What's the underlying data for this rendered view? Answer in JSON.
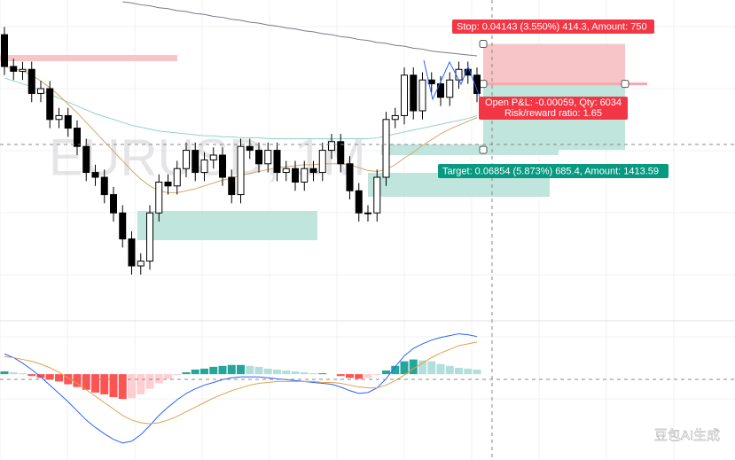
{
  "chart_data": [
    {
      "type": "candlestick",
      "title": "EURUSD, 1M",
      "open": [
        1.218,
        1.185,
        1.18,
        1.182,
        1.157,
        1.162,
        1.13,
        1.134,
        1.121,
        1.102,
        1.075,
        1.07,
        1.052,
        1.033,
        1.006,
        0.978,
        0.983,
        1.033,
        1.065,
        1.061,
        1.079,
        1.098,
        1.075,
        1.088,
        1.093,
        1.07,
        1.052,
        1.102,
        1.098,
        1.084,
        1.098,
        1.075,
        1.079,
        1.065,
        1.079,
        1.075,
        1.098,
        1.107,
        1.084,
        1.056,
        1.033,
        1.033,
        1.07,
        1.13,
        1.134,
        1.176,
        1.139,
        1.171,
        1.167,
        1.153,
        1.171,
        1.182,
        1.176
      ],
      "high": [
        1.226,
        1.193,
        1.19,
        1.19,
        1.17,
        1.17,
        1.142,
        1.142,
        1.129,
        1.11,
        1.083,
        1.078,
        1.06,
        1.041,
        1.014,
        0.991,
        1.041,
        1.073,
        1.073,
        1.087,
        1.106,
        1.106,
        1.096,
        1.101,
        1.101,
        1.078,
        1.11,
        1.11,
        1.106,
        1.106,
        1.106,
        1.087,
        1.087,
        1.087,
        1.087,
        1.106,
        1.115,
        1.115,
        1.092,
        1.064,
        1.041,
        1.078,
        1.138,
        1.142,
        1.184,
        1.184,
        1.179,
        1.179,
        1.175,
        1.179,
        1.19,
        1.19,
        1.184
      ],
      "low": [
        1.176,
        1.171,
        1.171,
        1.148,
        1.148,
        1.121,
        1.121,
        1.112,
        1.093,
        1.066,
        1.061,
        1.043,
        1.024,
        0.997,
        0.969,
        0.969,
        0.974,
        1.024,
        1.052,
        1.052,
        1.07,
        1.066,
        1.066,
        1.079,
        1.061,
        1.043,
        1.043,
        1.089,
        1.075,
        1.075,
        1.066,
        1.066,
        1.056,
        1.056,
        1.066,
        1.066,
        1.089,
        1.075,
        1.047,
        1.024,
        1.024,
        1.024,
        1.061,
        1.121,
        1.125,
        1.13,
        1.13,
        1.158,
        1.144,
        1.144,
        1.162,
        1.167,
        1.148
      ],
      "close": [
        1.185,
        1.18,
        1.182,
        1.157,
        1.162,
        1.13,
        1.134,
        1.121,
        1.102,
        1.075,
        1.07,
        1.052,
        1.033,
        1.006,
        0.978,
        0.983,
        1.033,
        1.065,
        1.061,
        1.079,
        1.098,
        1.075,
        1.088,
        1.093,
        1.07,
        1.052,
        1.102,
        1.098,
        1.084,
        1.098,
        1.075,
        1.079,
        1.065,
        1.079,
        1.075,
        1.098,
        1.107,
        1.084,
        1.056,
        1.033,
        1.033,
        1.07,
        1.13,
        1.134,
        1.176,
        1.139,
        1.171,
        1.167,
        1.153,
        1.171,
        1.182,
        1.176,
        1.157
      ],
      "up_color": "#ffffff",
      "down_color": "#000000",
      "series": [
        {
          "color": "#787b86",
          "values": [
            null,
            null,
            null,
            null,
            null,
            null,
            null,
            null,
            null,
            null,
            null,
            null,
            null,
            1.252,
            1.251,
            1.249,
            1.248,
            1.246,
            1.245,
            1.243,
            1.242,
            1.24,
            1.239,
            1.237,
            1.236,
            1.234,
            1.233,
            1.231,
            1.23,
            1.228,
            1.227,
            1.225,
            1.224,
            1.222,
            1.221,
            1.219,
            1.218,
            1.216,
            1.215,
            1.213,
            1.212,
            1.21,
            1.209,
            1.207,
            1.206,
            1.204,
            1.203,
            1.201,
            1.2,
            1.199,
            1.198,
            1.197,
            1.196
          ]
        },
        {
          "color": "#8fd3cc",
          "values": [
            1.173,
            1.17,
            1.167,
            1.164,
            1.16,
            1.156,
            1.152,
            1.148,
            1.144,
            1.14,
            1.136,
            1.133,
            1.13,
            1.127,
            1.124,
            1.122,
            1.12,
            1.118,
            1.117,
            1.116,
            1.115,
            1.114,
            1.113,
            1.113,
            1.112,
            1.112,
            1.111,
            1.111,
            1.111,
            1.11,
            1.11,
            1.11,
            1.11,
            1.11,
            1.11,
            1.11,
            1.11,
            1.11,
            1.11,
            1.11,
            1.11,
            1.111,
            1.113,
            1.115,
            1.117,
            1.119,
            1.121,
            1.123,
            1.125,
            1.127,
            1.129,
            1.131,
            1.134
          ]
        },
        {
          "color": "#d9a66b",
          "values": [
            1.185,
            1.183,
            1.18,
            1.176,
            1.17,
            1.163,
            1.155,
            1.146,
            1.137,
            1.127,
            1.117,
            1.107,
            1.097,
            1.087,
            1.077,
            1.068,
            1.061,
            1.056,
            1.054,
            1.054,
            1.056,
            1.058,
            1.061,
            1.064,
            1.067,
            1.069,
            1.072,
            1.074,
            1.076,
            1.078,
            1.08,
            1.081,
            1.082,
            1.083,
            1.083,
            1.084,
            1.084,
            1.084,
            1.083,
            1.08,
            1.077,
            1.076,
            1.078,
            1.083,
            1.09,
            1.096,
            1.103,
            1.109,
            1.115,
            1.12,
            1.124,
            1.128,
            1.132
          ]
        }
      ],
      "ylim": [
        0.932,
        1.254
      ],
      "position": {
        "entry": 1.167,
        "stop": 1.20843,
        "target": 1.09846,
        "stop_color": "#f7c5c8",
        "target_color": "#bfe5dc"
      },
      "annotations": {
        "stop_label": "Stop: 0.04143 (3.550%) 414.3, Amount: 750",
        "pnl_label": "Open P&L: -0.00059, Qty: 6034",
        "rr_label": "Risk/reward ratio: 1.65",
        "target_label": "Target: 0.06854 (5.873%) 685.4, Amount: 1413.59"
      }
    },
    {
      "type": "macd",
      "histogram": [
        0.003,
        0.002,
        0.001,
        -0.002,
        -0.004,
        -0.006,
        -0.008,
        -0.011,
        -0.014,
        -0.017,
        -0.02,
        -0.022,
        -0.025,
        -0.027,
        -0.026,
        -0.022,
        -0.016,
        -0.01,
        -0.005,
        -0.001,
        0.002,
        0.005,
        0.006,
        0.008,
        0.009,
        0.01,
        0.01,
        0.009,
        0.008,
        0.006,
        0.005,
        0.004,
        0.003,
        0.002,
        0.001,
        0.001,
        0.0,
        -0.002,
        -0.004,
        -0.005,
        -0.004,
        -0.001,
        0.004,
        0.009,
        0.014,
        0.016,
        0.015,
        0.014,
        0.011,
        0.009,
        0.007,
        0.006,
        0.005
      ],
      "histogram_colors": [
        "#26a69a",
        "#b2dfdb",
        "#ff5252",
        "#ffcdd2"
      ],
      "series": [
        {
          "color": "#2962ff",
          "values": [
            0.022,
            0.018,
            0.012,
            0.005,
            -0.003,
            -0.012,
            -0.021,
            -0.03,
            -0.04,
            -0.05,
            -0.058,
            -0.065,
            -0.071,
            -0.075,
            -0.073,
            -0.066,
            -0.056,
            -0.045,
            -0.036,
            -0.028,
            -0.021,
            -0.016,
            -0.012,
            -0.009,
            -0.006,
            -0.004,
            -0.003,
            -0.003,
            -0.003,
            -0.004,
            -0.005,
            -0.006,
            -0.007,
            -0.008,
            -0.009,
            -0.01,
            -0.011,
            -0.014,
            -0.018,
            -0.021,
            -0.02,
            -0.015,
            -0.005,
            0.008,
            0.02,
            0.028,
            0.033,
            0.037,
            0.04,
            0.042,
            0.044,
            0.043,
            0.041
          ]
        },
        {
          "color": "#e0a050",
          "values": [
            0.019,
            0.018,
            0.016,
            0.014,
            0.011,
            0.007,
            0.002,
            -0.004,
            -0.01,
            -0.017,
            -0.024,
            -0.031,
            -0.038,
            -0.045,
            -0.05,
            -0.053,
            -0.054,
            -0.053,
            -0.05,
            -0.046,
            -0.041,
            -0.036,
            -0.031,
            -0.026,
            -0.022,
            -0.018,
            -0.015,
            -0.012,
            -0.01,
            -0.009,
            -0.008,
            -0.008,
            -0.008,
            -0.008,
            -0.008,
            -0.009,
            -0.009,
            -0.01,
            -0.012,
            -0.014,
            -0.015,
            -0.015,
            -0.012,
            -0.007,
            -0.001,
            0.006,
            0.012,
            0.018,
            0.023,
            0.027,
            0.031,
            0.033,
            0.035
          ]
        }
      ],
      "ylim": [
        -0.08,
        0.06
      ]
    }
  ],
  "watermark": "豆包AI生成"
}
